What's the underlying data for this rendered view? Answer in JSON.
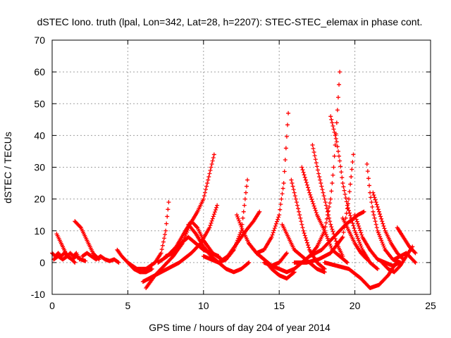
{
  "chart_data": {
    "type": "scatter",
    "title": "dSTEC Iono. truth (lpal, Lon=342, Lat=28, h=2207): STEC-STEC_elemax in phase cont.",
    "xlabel": "GPS time / hours of day 204 of year 2014",
    "ylabel": "dSTEC  / TECUs",
    "xlim": [
      0,
      25
    ],
    "ylim": [
      -10,
      70
    ],
    "xticks": [
      "0",
      "5",
      "10",
      "15",
      "20",
      "25"
    ],
    "yticks": [
      "-10",
      "0",
      "10",
      "20",
      "30",
      "40",
      "50",
      "60",
      "70"
    ],
    "grid": true,
    "marker": "plus",
    "color": "#ff0000",
    "arcs": [
      [
        [
          0.0,
          3
        ],
        [
          0.2,
          2
        ],
        [
          0.4,
          3
        ],
        [
          0.6,
          2
        ],
        [
          0.8,
          3
        ],
        [
          1.0,
          2
        ],
        [
          1.2,
          3
        ],
        [
          1.4,
          2
        ],
        [
          1.6,
          3
        ],
        [
          1.8,
          1
        ]
      ],
      [
        [
          0.3,
          9
        ],
        [
          0.5,
          7
        ],
        [
          0.7,
          5
        ],
        [
          0.9,
          3
        ],
        [
          1.1,
          2
        ],
        [
          1.3,
          1
        ],
        [
          1.5,
          0
        ]
      ],
      [
        [
          0.1,
          1
        ],
        [
          0.4,
          2
        ],
        [
          0.7,
          1
        ],
        [
          1.0,
          2
        ],
        [
          1.3,
          1
        ],
        [
          1.6,
          2
        ],
        [
          1.9,
          1
        ],
        [
          2.2,
          0.5
        ]
      ],
      [
        [
          1.5,
          13
        ],
        [
          1.7,
          12
        ],
        [
          1.9,
          11
        ],
        [
          2.1,
          9
        ],
        [
          2.3,
          7
        ],
        [
          2.5,
          5
        ],
        [
          2.7,
          3
        ],
        [
          2.9,
          2
        ],
        [
          3.1,
          1
        ]
      ],
      [
        [
          2.0,
          2
        ],
        [
          2.3,
          3
        ],
        [
          2.6,
          2
        ],
        [
          2.9,
          1
        ],
        [
          3.2,
          2
        ],
        [
          3.5,
          1
        ],
        [
          3.8,
          0.5
        ],
        [
          4.1,
          1
        ],
        [
          4.4,
          0
        ]
      ],
      [
        [
          4.3,
          4
        ],
        [
          4.6,
          2
        ],
        [
          5.0,
          0
        ],
        [
          5.4,
          -2
        ],
        [
          5.8,
          -3
        ],
        [
          6.2,
          -3
        ],
        [
          6.6,
          -2
        ]
      ],
      [
        [
          5.0,
          0
        ],
        [
          5.6,
          -2
        ],
        [
          6.2,
          -2
        ],
        [
          6.8,
          0
        ],
        [
          7.2,
          3
        ],
        [
          7.5,
          10
        ],
        [
          7.7,
          19
        ]
      ],
      [
        [
          6.2,
          -8
        ],
        [
          6.8,
          -4
        ],
        [
          7.4,
          -1
        ],
        [
          8.0,
          2
        ],
        [
          8.6,
          6
        ],
        [
          9.1,
          12
        ],
        [
          9.6,
          16
        ],
        [
          10.0,
          20
        ],
        [
          10.4,
          28
        ],
        [
          10.7,
          34
        ]
      ],
      [
        [
          6.0,
          -6
        ],
        [
          6.8,
          -4
        ],
        [
          7.6,
          -2
        ],
        [
          8.4,
          0
        ],
        [
          9.2,
          3
        ],
        [
          9.8,
          6
        ],
        [
          10.4,
          11
        ],
        [
          10.9,
          18
        ]
      ],
      [
        [
          7.0,
          0
        ],
        [
          7.6,
          2
        ],
        [
          8.2,
          5
        ],
        [
          8.8,
          10
        ],
        [
          9.2,
          13
        ],
        [
          9.6,
          11
        ],
        [
          10.0,
          7
        ],
        [
          10.6,
          3
        ],
        [
          11.2,
          1
        ]
      ],
      [
        [
          7.5,
          2
        ],
        [
          8.0,
          3
        ],
        [
          8.5,
          6
        ],
        [
          9.0,
          8
        ],
        [
          9.5,
          6
        ],
        [
          10.0,
          4
        ],
        [
          10.5,
          3
        ],
        [
          11.0,
          2
        ]
      ],
      [
        [
          9.0,
          12
        ],
        [
          9.5,
          9
        ],
        [
          10.0,
          5
        ],
        [
          10.5,
          2
        ],
        [
          11.0,
          0
        ],
        [
          11.5,
          -2
        ],
        [
          12.0,
          -3
        ],
        [
          12.5,
          -2
        ],
        [
          13.0,
          0
        ]
      ],
      [
        [
          10.0,
          2
        ],
        [
          10.5,
          1
        ],
        [
          11.0,
          0
        ],
        [
          11.5,
          1
        ],
        [
          12.0,
          4
        ],
        [
          12.5,
          10
        ],
        [
          12.9,
          26
        ]
      ],
      [
        [
          11.0,
          0
        ],
        [
          11.6,
          2
        ],
        [
          12.2,
          6
        ],
        [
          12.8,
          10
        ],
        [
          13.3,
          13
        ],
        [
          13.7,
          16
        ]
      ],
      [
        [
          12.2,
          15
        ],
        [
          12.6,
          10
        ],
        [
          13.0,
          6
        ],
        [
          13.5,
          3
        ],
        [
          14.0,
          1
        ],
        [
          14.5,
          -1
        ],
        [
          15.0,
          0
        ],
        [
          15.5,
          3
        ]
      ],
      [
        [
          13.0,
          6
        ],
        [
          13.5,
          3
        ],
        [
          14.0,
          1
        ],
        [
          14.5,
          -2
        ],
        [
          15.0,
          -4
        ],
        [
          15.5,
          -5
        ],
        [
          16.0,
          -3
        ]
      ],
      [
        [
          13.5,
          3
        ],
        [
          14.0,
          4
        ],
        [
          14.5,
          8
        ],
        [
          15.0,
          15
        ],
        [
          15.3,
          25
        ],
        [
          15.6,
          47
        ]
      ],
      [
        [
          14.0,
          0
        ],
        [
          14.5,
          -1
        ],
        [
          15.0,
          -2
        ],
        [
          15.5,
          -3
        ],
        [
          16.0,
          -2
        ],
        [
          16.5,
          0
        ],
        [
          17.0,
          2
        ],
        [
          17.5,
          5
        ],
        [
          18.0,
          10
        ],
        [
          18.4,
          20
        ],
        [
          18.6,
          30
        ],
        [
          18.8,
          44
        ],
        [
          19.0,
          60
        ]
      ],
      [
        [
          15.8,
          26
        ],
        [
          16.2,
          18
        ],
        [
          16.6,
          10
        ],
        [
          17.0,
          4
        ],
        [
          17.5,
          0
        ],
        [
          18.0,
          -2
        ]
      ],
      [
        [
          15.2,
          12
        ],
        [
          15.6,
          8
        ],
        [
          16.0,
          4
        ],
        [
          16.5,
          2
        ],
        [
          17.0,
          0
        ],
        [
          17.5,
          -2
        ],
        [
          18.0,
          -3
        ]
      ],
      [
        [
          16.5,
          30
        ],
        [
          17.0,
          22
        ],
        [
          17.5,
          15
        ],
        [
          18.0,
          10
        ],
        [
          18.5,
          4
        ],
        [
          19.0,
          2
        ],
        [
          19.5,
          0
        ]
      ],
      [
        [
          17.2,
          37
        ],
        [
          17.6,
          28
        ],
        [
          18.0,
          20
        ],
        [
          18.4,
          12
        ],
        [
          18.8,
          6
        ],
        [
          19.2,
          2
        ]
      ],
      [
        [
          18.4,
          46
        ],
        [
          18.8,
          38
        ],
        [
          19.0,
          32
        ],
        [
          19.2,
          25
        ],
        [
          19.5,
          18
        ],
        [
          20.0,
          10
        ],
        [
          20.5,
          4
        ],
        [
          21.0,
          0
        ],
        [
          21.5,
          -2
        ]
      ],
      [
        [
          16.0,
          0
        ],
        [
          16.8,
          0
        ],
        [
          17.6,
          1
        ],
        [
          18.4,
          3
        ],
        [
          19.2,
          8
        ],
        [
          19.6,
          20
        ],
        [
          19.9,
          34
        ]
      ],
      [
        [
          17.0,
          2
        ],
        [
          17.8,
          4
        ],
        [
          18.6,
          8
        ],
        [
          19.4,
          12
        ],
        [
          20.2,
          15
        ],
        [
          20.6,
          16
        ]
      ],
      [
        [
          18.0,
          0
        ],
        [
          18.8,
          -1
        ],
        [
          19.6,
          -2
        ],
        [
          20.4,
          -5
        ],
        [
          21.0,
          -8
        ],
        [
          21.6,
          -7
        ],
        [
          22.2,
          -4
        ],
        [
          22.6,
          -1
        ]
      ],
      [
        [
          19.2,
          14
        ],
        [
          19.6,
          10
        ],
        [
          20.0,
          6
        ],
        [
          20.4,
          3
        ],
        [
          20.8,
          1
        ]
      ],
      [
        [
          20.8,
          31
        ],
        [
          21.0,
          22
        ],
        [
          21.2,
          16
        ],
        [
          21.5,
          10
        ],
        [
          22.0,
          4
        ],
        [
          22.5,
          1
        ],
        [
          23.0,
          0
        ]
      ],
      [
        [
          21.2,
          22
        ],
        [
          21.6,
          16
        ],
        [
          22.0,
          10
        ],
        [
          22.4,
          6
        ],
        [
          22.8,
          3
        ],
        [
          23.2,
          1
        ]
      ],
      [
        [
          20.0,
          15
        ],
        [
          20.5,
          8
        ],
        [
          21.0,
          4
        ],
        [
          21.5,
          1
        ],
        [
          22.0,
          0
        ],
        [
          22.5,
          -1
        ],
        [
          23.0,
          0
        ]
      ],
      [
        [
          21.8,
          0
        ],
        [
          22.2,
          -2
        ],
        [
          22.6,
          -3
        ],
        [
          23.0,
          -1
        ],
        [
          23.4,
          2
        ],
        [
          23.8,
          5
        ]
      ],
      [
        [
          22.8,
          11
        ],
        [
          23.2,
          8
        ],
        [
          23.6,
          5
        ],
        [
          24.0,
          3
        ]
      ],
      [
        [
          22.6,
          1
        ],
        [
          23.0,
          2
        ],
        [
          23.4,
          3
        ],
        [
          23.8,
          1
        ],
        [
          24.0,
          0
        ]
      ]
    ]
  }
}
